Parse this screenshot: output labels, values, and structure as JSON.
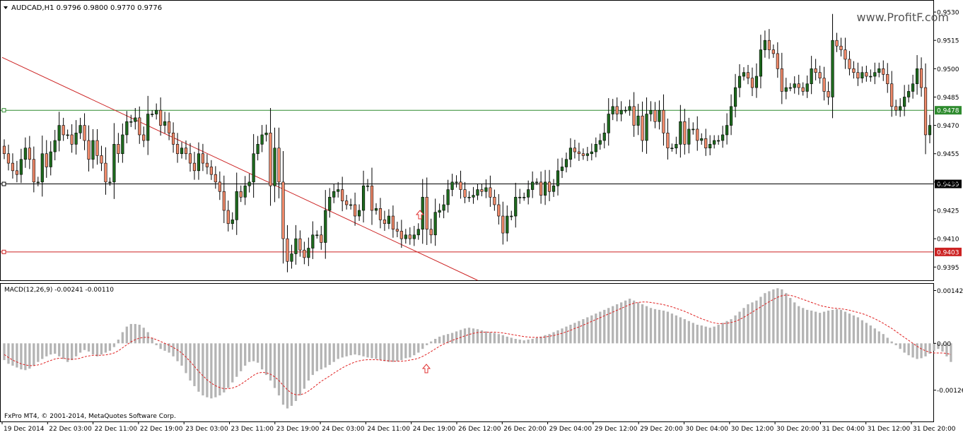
{
  "header": {
    "symbol_line": "AUDCAD,H1  0.9796 0.9800 0.9770 0.9776",
    "watermark": "www.ProfitF.com"
  },
  "footer": {
    "copyright": "FxPro MT4, © 2001-2014, MetaQuotes Software Corp."
  },
  "colors": {
    "bull": "#1e6b1e",
    "bear": "#f08a6a",
    "trendline": "#cc2222",
    "support": "#cc2222",
    "resistance": "#2e8b2e",
    "pivot": "#000000",
    "macd_hist": "#b4b4b4",
    "macd_signal": "#e02020"
  },
  "chart_data": [
    {
      "type": "candlestick",
      "ylim": [
        0.9388,
        0.9536
      ],
      "yticks": [
        "0.9530",
        "0.9515",
        "0.9500",
        "0.9485",
        "0.9470",
        "0.9455",
        "0.9440",
        "0.9425",
        "0.9410",
        "0.9395"
      ],
      "xticks": [
        "19 Dec 2014",
        "22 Dec 03:00",
        "22 Dec 11:00",
        "22 Dec 19:00",
        "23 Dec 03:00",
        "23 Dec 11:00",
        "23 Dec 19:00",
        "24 Dec 03:00",
        "24 Dec 11:00",
        "24 Dec 19:00",
        "26 Dec 12:00",
        "26 Dec 20:00",
        "29 Dec 04:00",
        "29 Dec 12:00",
        "29 Dec 20:00",
        "30 Dec 04:00",
        "30 Dec 12:00",
        "30 Dec 20:00",
        "31 Dec 04:00",
        "31 Dec 12:00",
        "31 Dec 20:00"
      ],
      "horizontal_levels": [
        {
          "value": 0.9478,
          "label": "0.9478",
          "color": "#2e8b2e"
        },
        {
          "value": 0.9439,
          "label": "0.9439",
          "color": "#000000"
        },
        {
          "value": 0.9403,
          "label": "0.9403",
          "color": "#cc2222"
        }
      ],
      "trendline": {
        "from": [
          0,
          0.9506
        ],
        "to": [
          112,
          0.9388
        ]
      },
      "close_series": [
        0.9455,
        0.945,
        0.9446,
        0.9444,
        0.9452,
        0.9458,
        0.9452,
        0.944,
        0.944,
        0.9455,
        0.9448,
        0.9456,
        0.9462,
        0.947,
        0.9465,
        0.9465,
        0.946,
        0.9466,
        0.947,
        0.9462,
        0.9452,
        0.9462,
        0.9454,
        0.945,
        0.944,
        0.944,
        0.946,
        0.9455,
        0.9465,
        0.9472,
        0.9472,
        0.9474,
        0.9465,
        0.9462,
        0.9476,
        0.9476,
        0.9478,
        0.947,
        0.9472,
        0.9466,
        0.946,
        0.9455,
        0.9458,
        0.9455,
        0.945,
        0.9446,
        0.9455,
        0.945,
        0.9448,
        0.9444,
        0.944,
        0.9435,
        0.9425,
        0.9418,
        0.942,
        0.9435,
        0.9432,
        0.9438,
        0.944,
        0.9455,
        0.946,
        0.9465,
        0.9466,
        0.9438,
        0.9458,
        0.944,
        0.941,
        0.9398,
        0.9402,
        0.941,
        0.9404,
        0.94,
        0.9405,
        0.9412,
        0.9412,
        0.9408,
        0.9425,
        0.9432,
        0.9435,
        0.9436,
        0.943,
        0.9428,
        0.9428,
        0.9422,
        0.9425,
        0.9438,
        0.9438,
        0.9425,
        0.9426,
        0.942,
        0.9418,
        0.9422,
        0.9415,
        0.9414,
        0.941,
        0.9412,
        0.941,
        0.9412,
        0.9415,
        0.9432,
        0.9415,
        0.9412,
        0.9424,
        0.9425,
        0.9428,
        0.9436,
        0.944,
        0.944,
        0.9436,
        0.9432,
        0.9432,
        0.9433,
        0.9436,
        0.9435,
        0.9437,
        0.9432,
        0.9428,
        0.9422,
        0.9413,
        0.9422,
        0.9422,
        0.9432,
        0.9432,
        0.9432,
        0.9436,
        0.944,
        0.944,
        0.9433,
        0.944,
        0.9435,
        0.9438,
        0.9446,
        0.9448,
        0.9452,
        0.9458,
        0.9456,
        0.9455,
        0.9454,
        0.9455,
        0.9456,
        0.946,
        0.9462,
        0.9466,
        0.9476,
        0.948,
        0.9476,
        0.9478,
        0.9478,
        0.948,
        0.947,
        0.9475,
        0.9462,
        0.9476,
        0.9478,
        0.9472,
        0.9478,
        0.9466,
        0.9458,
        0.9458,
        0.946,
        0.9472,
        0.946,
        0.9468,
        0.9468,
        0.9462,
        0.9463,
        0.9458,
        0.946,
        0.9462,
        0.9462,
        0.9465,
        0.947,
        0.948,
        0.949,
        0.9496,
        0.9498,
        0.9495,
        0.949,
        0.9496,
        0.951,
        0.9515,
        0.951,
        0.9508,
        0.95,
        0.9488,
        0.949,
        0.949,
        0.9492,
        0.949,
        0.9488,
        0.9492,
        0.95,
        0.9498,
        0.9495,
        0.9488,
        0.9485,
        0.9515,
        0.9512,
        0.951,
        0.9505,
        0.95,
        0.9498,
        0.9495,
        0.9498,
        0.9496,
        0.9496,
        0.9498,
        0.95,
        0.9497,
        0.9492,
        0.948,
        0.9478,
        0.948,
        0.9485,
        0.9488,
        0.9492,
        0.95,
        0.949,
        0.9465,
        0.947
      ]
    },
    {
      "type": "bar",
      "title": "MACD(12,26,9) -0.00241 -0.00110",
      "ylim": [
        -0.0021,
        0.0016
      ],
      "yticks": [
        "0.00142",
        "0.00",
        "-0.00126"
      ],
      "histogram": [
        -0.00045,
        -0.00055,
        -0.0006,
        -0.00065,
        -0.0007,
        -0.00072,
        -0.00068,
        -0.0006,
        -0.0005,
        -0.00042,
        -0.00035,
        -0.0003,
        -0.00028,
        -0.00035,
        -0.00042,
        -0.0005,
        -0.00045,
        -0.00035,
        -0.00025,
        -0.00018,
        -0.00022,
        -0.0003,
        -0.00035,
        -0.0003,
        -0.00025,
        -0.0002,
        -0.0001,
        0.0001,
        0.0003,
        0.00045,
        0.00052,
        0.00052,
        0.0005,
        0.00042,
        0.0003,
        0.00015,
        -5e-05,
        -0.00015,
        -0.0002,
        -0.00025,
        -0.00035,
        -0.00048,
        -0.0006,
        -0.0008,
        -0.001,
        -0.00115,
        -0.0013,
        -0.0014,
        -0.00145,
        -0.00148,
        -0.00145,
        -0.0014,
        -0.00132,
        -0.0012,
        -0.00105,
        -0.0009,
        -0.00075,
        -0.0006,
        -0.0005,
        -0.00048,
        -0.00052,
        -0.0007,
        -0.00085,
        -0.001,
        -0.0012,
        -0.0014,
        -0.00165,
        -0.00175,
        -0.00168,
        -0.00155,
        -0.0014,
        -0.00122,
        -0.001,
        -0.00085,
        -0.00075,
        -0.0007,
        -0.00065,
        -0.00058,
        -0.0005,
        -0.00042,
        -0.00038,
        -0.00035,
        -0.00032,
        -0.0003,
        -0.00032,
        -0.00035,
        -0.00038,
        -0.0004,
        -0.00042,
        -0.00045,
        -0.00048,
        -0.0005,
        -0.0005,
        -0.00048,
        -0.00045,
        -0.0004,
        -0.00038,
        -0.00032,
        -0.00025,
        -0.00015,
        -5e-05,
        5e-05,
        0.00012,
        0.00018,
        0.00022,
        0.00025,
        0.00028,
        0.00032,
        0.00036,
        0.0004,
        0.00042,
        0.0004,
        0.00038,
        0.00035,
        0.00032,
        0.0003,
        0.00028,
        0.00025,
        0.00022,
        0.00018,
        0.00015,
        0.00012,
        0.0001,
        8e-05,
        0.0001,
        0.00012,
        0.00015,
        0.00018,
        0.00022,
        0.00025,
        0.0003,
        0.00035,
        0.0004,
        0.00045,
        0.0005,
        0.00055,
        0.0006,
        0.00065,
        0.0007,
        0.00075,
        0.0008,
        0.00085,
        0.0009,
        0.00095,
        0.001,
        0.00105,
        0.0011,
        0.00115,
        0.0012,
        0.00115,
        0.0011,
        0.00105,
        0.001,
        0.00095,
        0.00092,
        0.0009,
        0.00088,
        0.00085,
        0.0008,
        0.00075,
        0.0007,
        0.00065,
        0.0006,
        0.00055,
        0.0005,
        0.00048,
        0.00045,
        0.00042,
        0.00045,
        0.0005,
        0.00055,
        0.0006,
        0.00065,
        0.00075,
        0.00085,
        0.00095,
        0.00105,
        0.0011,
        0.00115,
        0.00125,
        0.00135,
        0.0014,
        0.00145,
        0.00148,
        0.00145,
        0.00135,
        0.00122,
        0.0011,
        0.001,
        0.00095,
        0.0009,
        0.00088,
        0.00085,
        0.00082,
        0.00085,
        0.00088,
        0.0009,
        0.00092,
        0.0009,
        0.00085,
        0.0008,
        0.00075,
        0.0007,
        0.00062,
        0.00055,
        0.00048,
        0.0004,
        0.00032,
        0.00025,
        0.00015,
        5e-05,
        -5e-05,
        -0.00015,
        -0.00025,
        -0.00032,
        -0.00038,
        -0.00042,
        -0.0004,
        -0.00035,
        -0.00028,
        -0.0002,
        -0.00015,
        -0.00022,
        -0.00035,
        -0.0005
      ],
      "signal": [
        -0.0003,
        -0.00038,
        -0.00045,
        -0.0005,
        -0.00055,
        -0.00058,
        -0.0006,
        -0.0006,
        -0.00058,
        -0.00055,
        -0.0005,
        -0.00046,
        -0.00042,
        -0.0004,
        -0.0004,
        -0.00042,
        -0.00043,
        -0.00042,
        -0.0004,
        -0.00036,
        -0.00034,
        -0.00032,
        -0.00032,
        -0.00032,
        -0.00031,
        -0.00029,
        -0.00026,
        -0.0002,
        -0.00012,
        -4e-05,
        4e-05,
        0.0001,
        0.00014,
        0.00016,
        0.00016,
        0.00014,
        0.0001,
        5e-05,
        0.0,
        -5e-05,
        -0.00011,
        -0.00018,
        -0.00026,
        -0.00037,
        -0.00049,
        -0.00062,
        -0.00075,
        -0.00087,
        -0.00098,
        -0.00107,
        -0.00114,
        -0.00119,
        -0.00122,
        -0.00122,
        -0.0012,
        -0.00116,
        -0.0011,
        -0.00102,
        -0.00094,
        -0.00086,
        -0.0008,
        -0.00078,
        -0.00079,
        -0.00083,
        -0.0009,
        -0.001,
        -0.00113,
        -0.00125,
        -0.00134,
        -0.00138,
        -0.00138,
        -0.00135,
        -0.00128,
        -0.0012,
        -0.00111,
        -0.00102,
        -0.00095,
        -0.00088,
        -0.0008,
        -0.00073,
        -0.00066,
        -0.0006,
        -0.00055,
        -0.0005,
        -0.00047,
        -0.00045,
        -0.00044,
        -0.00044,
        -0.00044,
        -0.00045,
        -0.00046,
        -0.00047,
        -0.00048,
        -0.00048,
        -0.00048,
        -0.00047,
        -0.00045,
        -0.00043,
        -0.0004,
        -0.00035,
        -0.00029,
        -0.00022,
        -0.00015,
        -8e-05,
        -2e-05,
        3e-05,
        8e-05,
        0.00012,
        0.00016,
        0.0002,
        0.00024,
        0.00027,
        0.00029,
        0.0003,
        0.0003,
        0.0003,
        0.0003,
        0.00029,
        0.00028,
        0.00026,
        0.00024,
        0.00022,
        0.0002,
        0.00018,
        0.00017,
        0.00016,
        0.00016,
        0.00016,
        0.00017,
        0.00019,
        0.00021,
        0.00024,
        0.00027,
        0.00031,
        0.00035,
        0.0004,
        0.00044,
        0.00049,
        0.00054,
        0.00059,
        0.00064,
        0.00069,
        0.00074,
        0.00079,
        0.00084,
        0.00089,
        0.00094,
        0.00099,
        0.00104,
        0.00108,
        0.0011,
        0.00111,
        0.00111,
        0.0011,
        0.00108,
        0.00106,
        0.00104,
        0.00101,
        0.00098,
        0.00094,
        0.0009,
        0.00086,
        0.00081,
        0.00076,
        0.00071,
        0.00066,
        0.00062,
        0.00058,
        0.00055,
        0.00053,
        0.00053,
        0.00054,
        0.00056,
        0.00059,
        0.00064,
        0.0007,
        0.00077,
        0.00084,
        0.00091,
        0.00098,
        0.00105,
        0.00112,
        0.00118,
        0.00124,
        0.00128,
        0.0013,
        0.00129,
        0.00126,
        0.00122,
        0.00118,
        0.00114,
        0.0011,
        0.00106,
        0.00102,
        0.00099,
        0.00097,
        0.00095,
        0.00094,
        0.00093,
        0.00091,
        0.00089,
        0.00086,
        0.00083,
        0.0008,
        0.00076,
        0.00071,
        0.00066,
        0.0006,
        0.00054,
        0.00047,
        0.0004,
        0.00032,
        0.00024,
        0.00016,
        8e-05,
        0.0,
        -8e-05,
        -0.00015,
        -0.0002,
        -0.00024,
        -0.00026,
        -0.00026,
        -0.00026,
        -0.00027,
        -0.0003
      ]
    }
  ]
}
